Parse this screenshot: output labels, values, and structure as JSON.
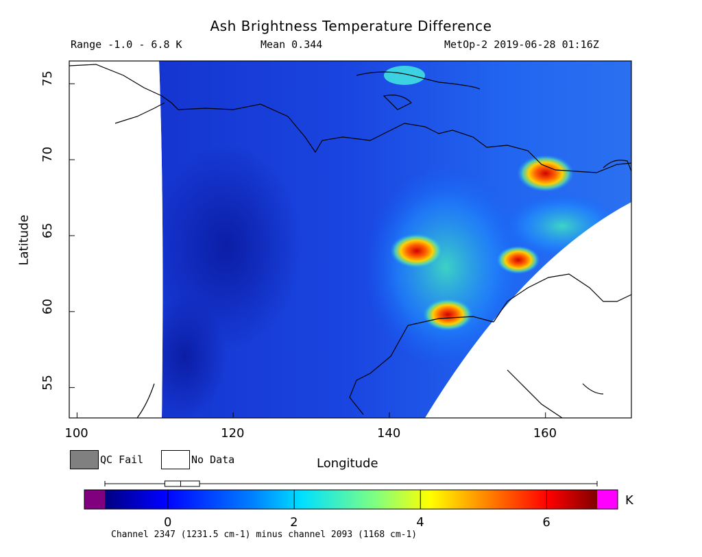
{
  "title": "Ash Brightness Temperature Difference",
  "info": {
    "range": "Range -1.0 - 6.8 K",
    "mean": "Mean 0.344",
    "satellite": "MetOp-2 2019-06-28 01:16Z"
  },
  "map": {
    "xlabel": "Longitude",
    "ylabel": "Latitude",
    "lon_range": [
      99,
      171
    ],
    "lat_range": [
      53,
      76.5
    ],
    "lon_ticks": [
      "100",
      "120",
      "140",
      "160"
    ],
    "lat_ticks": [
      "55",
      "60",
      "65",
      "70",
      "75"
    ],
    "hotspots": [
      {
        "lon": 143.5,
        "lat": 64.0,
        "value": 6.2
      },
      {
        "lon": 147.5,
        "lat": 59.8,
        "value": 5.6
      },
      {
        "lon": 160.0,
        "lat": 69.1,
        "value": 6.8
      },
      {
        "lon": 156.5,
        "lat": 63.4,
        "value": 4.4
      }
    ]
  },
  "legend": {
    "qc_fail": "QC Fail",
    "no_data": "No Data",
    "qc_color": "#808080",
    "no_data_color": "#ffffff"
  },
  "colorbar": {
    "unit": "K",
    "ticks": [
      "0",
      "2",
      "4",
      "6"
    ],
    "range": [
      -1.0,
      6.8
    ],
    "under_color": "#800080",
    "over_color": "#ff00ff",
    "boxplot": {
      "min": -1.0,
      "q1": -0.05,
      "median": 0.2,
      "q3": 0.5,
      "max": 6.8
    }
  },
  "footnote": "Channel 2347 (1231.5 cm-1) minus channel 2093 (1168 cm-1)"
}
